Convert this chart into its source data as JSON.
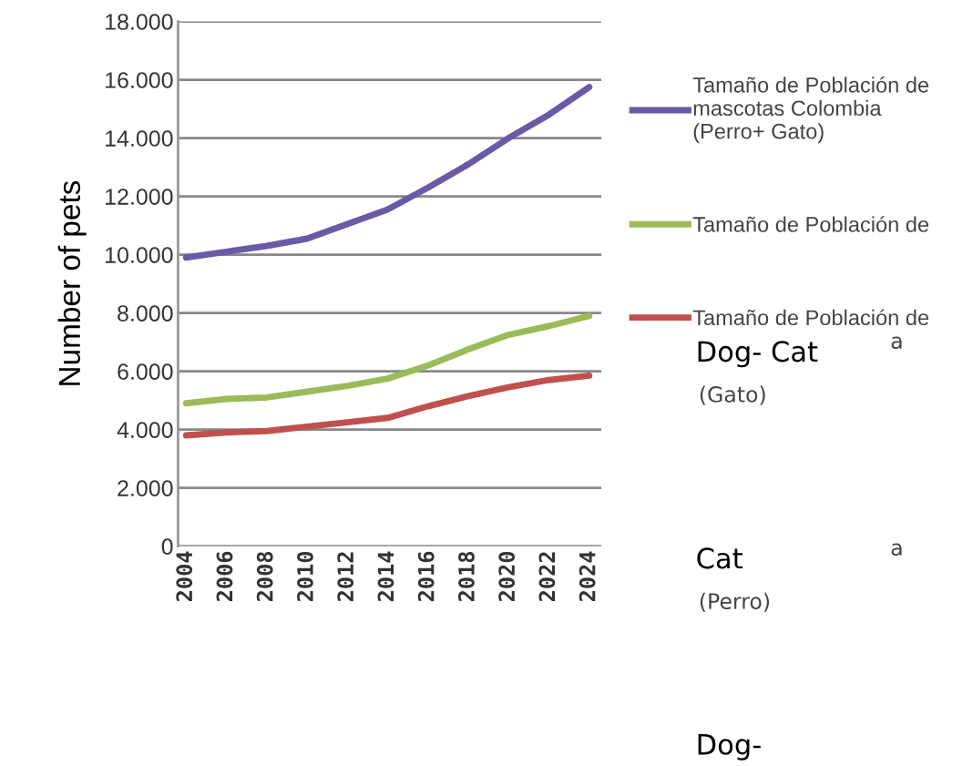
{
  "chart_data": {
    "type": "line",
    "ylabel": "Number of pets",
    "x": [
      2004,
      2006,
      2008,
      2010,
      2012,
      2014,
      2016,
      2018,
      2020,
      2022,
      2024
    ],
    "series": [
      {
        "name": "Tamaño de Población de\nmascotas Colombia\n(Perro+ Gato)",
        "color": "#6a5aa6",
        "values": [
          9900,
          10100,
          10300,
          10550,
          11050,
          11550,
          12300,
          13100,
          14000,
          14800,
          15750
        ]
      },
      {
        "name": "Tamaño de Población de",
        "color": "#9bbb59",
        "values": [
          4900,
          5050,
          5100,
          5300,
          5500,
          5750,
          6200,
          6750,
          7250,
          7550,
          7900
        ]
      },
      {
        "name": "Tamaño de Población de",
        "color": "#c0504d",
        "values": [
          3800,
          3900,
          3950,
          4100,
          4250,
          4400,
          4800,
          5150,
          5450,
          5700,
          5850
        ]
      }
    ],
    "xlim": [
      2003.6,
      2024.6
    ],
    "xticks": [
      2004,
      2006,
      2008,
      2010,
      2012,
      2014,
      2016,
      2018,
      2020,
      2022,
      2024
    ],
    "ylim": [
      0,
      18000
    ],
    "yticks": [
      0,
      {
        "value": 2000,
        "label": "2.000"
      },
      {
        "value": 4000,
        "label": "4.000"
      },
      {
        "value": 6000,
        "label": "6.000"
      },
      {
        "value": 8000,
        "label": "8.000"
      },
      {
        "value": 10000,
        "label": "10.000"
      },
      {
        "value": 12000,
        "label": "12.000"
      },
      {
        "value": 14000,
        "label": "14.000"
      },
      {
        "value": 16000,
        "label": "16.000"
      },
      {
        "value": 18000,
        "label": "18.000"
      }
    ],
    "grid": "y",
    "legend": "right",
    "marker": "none",
    "line_style": "solid",
    "annotations": [
      "Dog- Cat",
      "a",
      "(Gato)",
      "Cat",
      "a",
      "(Perro)",
      "Dog-"
    ]
  }
}
